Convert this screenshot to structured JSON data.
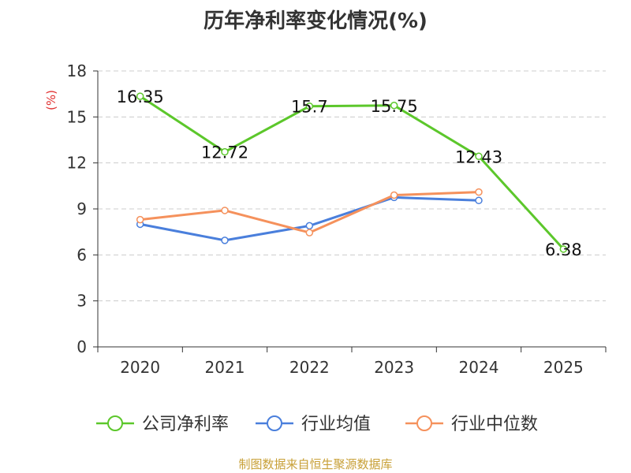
{
  "chart_data": {
    "type": "line",
    "title": "历年净利率变化情况(%)",
    "ylabel": "(%)",
    "xlabel": "",
    "categories": [
      "2020",
      "2021",
      "2022",
      "2023",
      "2024",
      "2025"
    ],
    "ylim": [
      0,
      18
    ],
    "yticks": [
      0,
      3,
      6,
      9,
      12,
      15,
      18
    ],
    "grid": true,
    "legend_position": "bottom",
    "series": [
      {
        "name": "公司净利率",
        "color": "#5cc72b",
        "values": [
          16.35,
          12.72,
          15.7,
          15.75,
          12.43,
          6.38
        ],
        "labels": [
          "16.35",
          "12.72",
          "15.7",
          "15.75",
          "12.43",
          "6.38"
        ]
      },
      {
        "name": "行业均值",
        "color": "#4a7fdc",
        "values": [
          8.0,
          6.95,
          7.9,
          9.75,
          9.55,
          null
        ]
      },
      {
        "name": "行业中位数",
        "color": "#f5915c",
        "values": [
          8.3,
          8.9,
          7.45,
          9.9,
          10.1,
          null
        ]
      }
    ]
  },
  "footer": {
    "source": "制图数据来自恒生聚源数据库"
  }
}
